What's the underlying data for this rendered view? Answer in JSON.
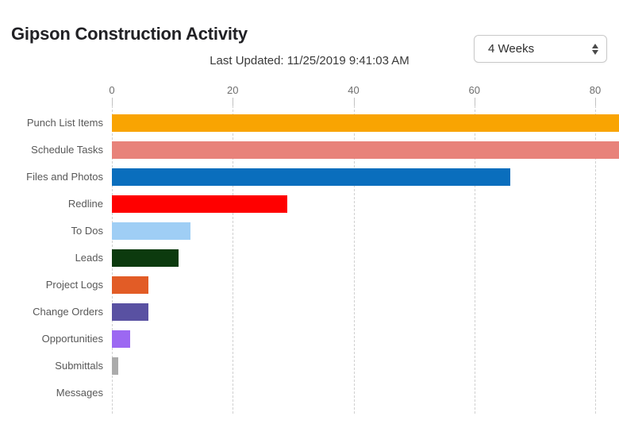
{
  "header": {
    "title": "Gipson Construction Activity",
    "last_updated": "Last Updated: 11/25/2019 9:41:03 AM",
    "period_selector": {
      "value": "4 Weeks"
    }
  },
  "chart_data": {
    "type": "bar",
    "orientation": "horizontal",
    "title": "Gipson Construction Activity",
    "categories": [
      "Punch List Items",
      "Schedule Tasks",
      "Files and Photos",
      "Redline",
      "To Dos",
      "Leads",
      "Project Logs",
      "Change Orders",
      "Opportunities",
      "Submittals",
      "Messages"
    ],
    "values": [
      85,
      85,
      66,
      29,
      13,
      11,
      6,
      6,
      3,
      1,
      0
    ],
    "clipped_at_right_edge": [
      true,
      true,
      false,
      false,
      false,
      false,
      false,
      false,
      false,
      false,
      false
    ],
    "colors": [
      "#f9a402",
      "#e8827a",
      "#0a6ebd",
      "#ff0000",
      "#9fcef5",
      "#0c3a0e",
      "#e25c26",
      "#5951a2",
      "#9c68f2",
      "#ababab",
      "#cccccc"
    ],
    "x_ticks": [
      0,
      20,
      40,
      60,
      80
    ],
    "xlim_visible": [
      0,
      84
    ],
    "xlabel": "",
    "ylabel": "",
    "grid": "dashed-vertical",
    "legend": "none"
  }
}
